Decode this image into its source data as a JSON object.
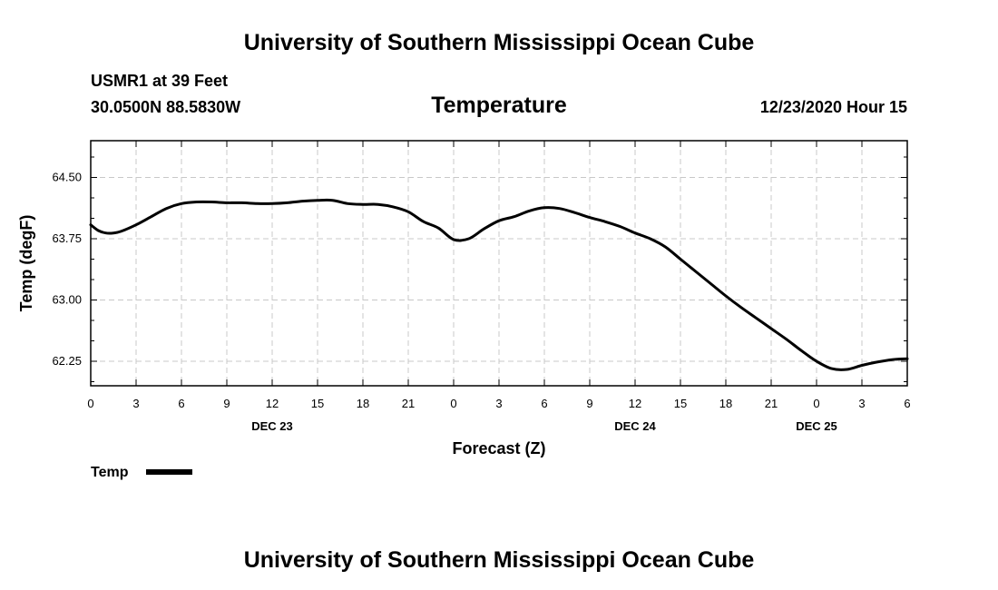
{
  "header": {
    "title_top": "University of Southern Mississippi Ocean Cube",
    "station": "USMR1 at 39 Feet",
    "coords": "30.0500N 88.5830W",
    "chart_title": "Temperature",
    "timestamp": "12/23/2020 Hour 15"
  },
  "footer": {
    "title_bottom": "University of Southern Mississippi Ocean Cube"
  },
  "chart_data": {
    "type": "line",
    "title": "Temperature",
    "xlabel": "Forecast (Z)",
    "ylabel": "Temp (degF)",
    "xlim": [
      0,
      54
    ],
    "ylim": [
      61.95,
      64.95
    ],
    "y_ticks": [
      62.25,
      63.0,
      63.75,
      64.5
    ],
    "y_tick_labels": [
      "62.25",
      "63.00",
      "63.75",
      "64.50"
    ],
    "y_minor_step": 0.25,
    "x_ticks": [
      0,
      3,
      6,
      9,
      12,
      15,
      18,
      21,
      24,
      27,
      30,
      33,
      36,
      39,
      42,
      45,
      48,
      51,
      54
    ],
    "x_tick_labels": [
      "0",
      "3",
      "6",
      "9",
      "12",
      "15",
      "18",
      "21",
      "0",
      "3",
      "6",
      "9",
      "12",
      "15",
      "18",
      "21",
      "0",
      "3",
      "6"
    ],
    "date_labels": [
      {
        "x": 12,
        "label": "DEC 23"
      },
      {
        "x": 36,
        "label": "DEC 24"
      },
      {
        "x": 48,
        "label": "DEC 25"
      }
    ],
    "grid": true,
    "legend": "bottom-left",
    "series": [
      {
        "name": "Temp",
        "color": "#000000",
        "x": [
          0,
          0.5,
          1,
          1.5,
          2,
          3,
          4,
          5,
          6,
          7,
          8,
          9,
          10,
          11,
          12,
          13,
          14,
          15,
          16,
          17,
          18,
          19,
          20,
          21,
          22,
          23,
          24,
          25,
          26,
          27,
          28,
          29,
          30,
          31,
          32,
          33,
          34,
          35,
          36,
          37,
          38,
          39,
          40,
          41,
          42,
          43,
          44,
          45,
          46,
          47,
          48,
          49,
          50,
          51,
          52,
          53,
          54
        ],
        "values": [
          63.92,
          63.85,
          63.82,
          63.82,
          63.84,
          63.92,
          64.02,
          64.12,
          64.18,
          64.2,
          64.2,
          64.19,
          64.19,
          64.18,
          64.18,
          64.19,
          64.21,
          64.22,
          64.22,
          64.18,
          64.17,
          64.17,
          64.14,
          64.08,
          63.96,
          63.88,
          63.74,
          63.75,
          63.87,
          63.97,
          64.02,
          64.09,
          64.13,
          64.12,
          64.07,
          64.01,
          63.96,
          63.9,
          63.82,
          63.75,
          63.65,
          63.5,
          63.35,
          63.2,
          63.05,
          62.91,
          62.78,
          62.65,
          62.52,
          62.38,
          62.25,
          62.16,
          62.15,
          62.2,
          62.24,
          62.27,
          62.28
        ]
      }
    ]
  }
}
